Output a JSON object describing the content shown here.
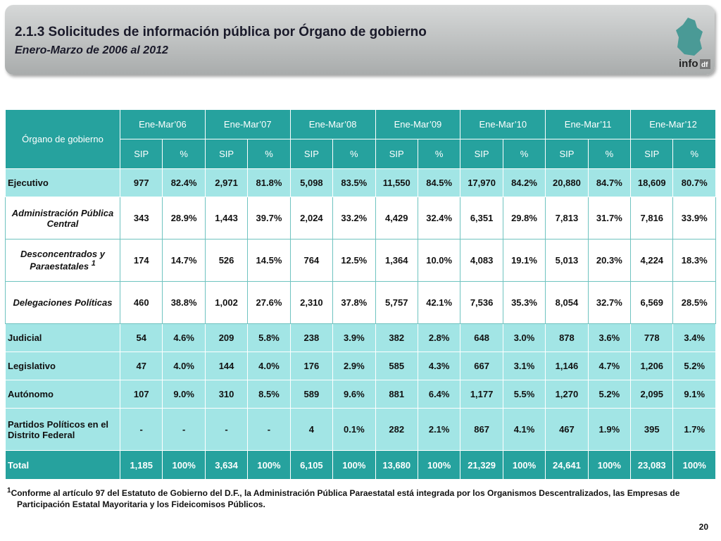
{
  "header": {
    "title": "2.1.3 Solicitudes de información pública por Órgano de gobierno",
    "subtitle": "Enero-Marzo de 2006 al 2012",
    "logo": "info",
    "logo_suffix": "df"
  },
  "table": {
    "corner": "Órgano de gobierno",
    "periods": [
      "Ene-Mar’06",
      "Ene-Mar’07",
      "Ene-Mar’08",
      "Ene-Mar’09",
      "Ene-Mar’10",
      "Ene-Mar’11",
      "Ene-Mar’12"
    ],
    "subheaders": [
      "SIP",
      "%"
    ],
    "rows": [
      {
        "label": "Ejecutivo",
        "cells": [
          "977",
          "82.4%",
          "2,971",
          "81.8%",
          "5,098",
          "83.5%",
          "11,550",
          "84.5%",
          "17,970",
          "84.2%",
          "20,880",
          "84.7%",
          "18,609",
          "80.7%"
        ],
        "subrows": [
          {
            "label": "Administración Pública Central",
            "cells": [
              "343",
              "28.9%",
              "1,443",
              "39.7%",
              "2,024",
              "33.2%",
              "4,429",
              "32.4%",
              "6,351",
              "29.8%",
              "7,813",
              "31.7%",
              "7,816",
              "33.9%"
            ]
          },
          {
            "label": "Desconcentrados y Paraestatales",
            "note": "1",
            "cells": [
              "174",
              "14.7%",
              "526",
              "14.5%",
              "764",
              "12.5%",
              "1,364",
              "10.0%",
              "4,083",
              "19.1%",
              "5,013",
              "20.3%",
              "4,224",
              "18.3%"
            ]
          },
          {
            "label": "Delegaciones Políticas",
            "cells": [
              "460",
              "38.8%",
              "1,002",
              "27.6%",
              "2,310",
              "37.8%",
              "5,757",
              "42.1%",
              "7,536",
              "35.3%",
              "8,054",
              "32.7%",
              "6,569",
              "28.5%"
            ]
          }
        ]
      },
      {
        "label": "Judicial",
        "cells": [
          "54",
          "4.6%",
          "209",
          "5.8%",
          "238",
          "3.9%",
          "382",
          "2.8%",
          "648",
          "3.0%",
          "878",
          "3.6%",
          "778",
          "3.4%"
        ]
      },
      {
        "label": "Legislativo",
        "cells": [
          "47",
          "4.0%",
          "144",
          "4.0%",
          "176",
          "2.9%",
          "585",
          "4.3%",
          "667",
          "3.1%",
          "1,146",
          "4.7%",
          "1,206",
          "5.2%"
        ]
      },
      {
        "label": "Autónomo",
        "cells": [
          "107",
          "9.0%",
          "310",
          "8.5%",
          "589",
          "9.6%",
          "881",
          "6.4%",
          "1,177",
          "5.5%",
          "1,270",
          "5.2%",
          "2,095",
          "9.1%"
        ]
      },
      {
        "label": "Partidos Políticos en el Distrito Federal",
        "cells": [
          "-",
          "-",
          "-",
          "-",
          "4",
          "0.1%",
          "282",
          "2.1%",
          "867",
          "4.1%",
          "467",
          "1.9%",
          "395",
          "1.7%"
        ]
      }
    ],
    "total": {
      "label": "Total",
      "cells": [
        "1,185",
        "100%",
        "3,634",
        "100%",
        "6,105",
        "100%",
        "13,680",
        "100%",
        "21,329",
        "100%",
        "24,641",
        "100%",
        "23,083",
        "100%"
      ]
    }
  },
  "footnote": {
    "marker": "1",
    "text": "Conforme al artículo 97 del Estatuto de Gobierno del D.F., la Administración Pública Paraestatal está integrada por los Organismos Descentralizados, las Empresas de Participación Estatal Mayoritaria y los Fideicomisos Públicos."
  },
  "page_number": "20"
}
